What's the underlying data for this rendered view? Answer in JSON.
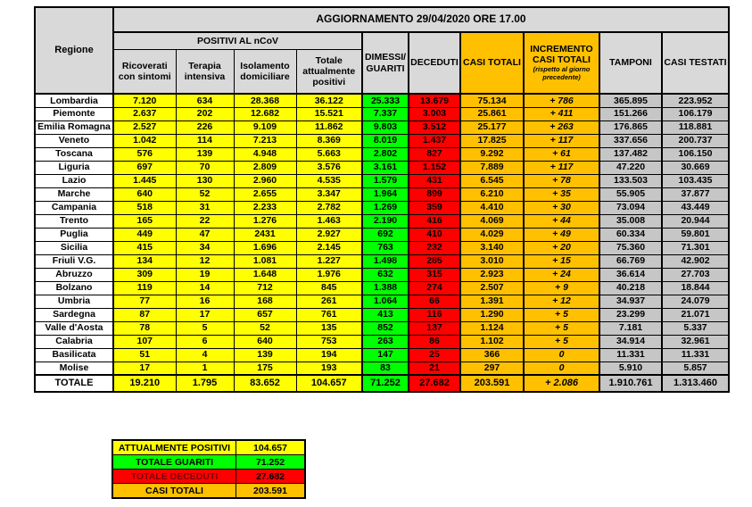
{
  "table": {
    "title": "AGGIORNAMENTO 29/04/2020 ORE 17.00",
    "region_header": "Regione",
    "group_header": "POSITIVI AL nCoV",
    "sub_headers": [
      "Ricoverati con sintomi",
      "Terapia intensiva",
      "Isolamento domiciliare",
      "Totale attualmente positivi"
    ],
    "col_headers": [
      "DIMESSI/ GUARITI",
      "DECEDUTI",
      "CASI TOTALI",
      "INCREMENTO CASI TOTALI",
      "TAMPONI",
      "CASI TESTATI"
    ],
    "increment_note": "(rispetto al giorno precedente)",
    "rows": [
      {
        "region": "Lombardia",
        "cells": [
          "7.120",
          "634",
          "28.368",
          "36.122",
          "25.333",
          "13.679",
          "75.134",
          "+ 786",
          "365.895",
          "223.952"
        ]
      },
      {
        "region": "Piemonte",
        "cells": [
          "2.637",
          "202",
          "12.682",
          "15.521",
          "7.337",
          "3.003",
          "25.861",
          "+ 411",
          "151.266",
          "106.179"
        ]
      },
      {
        "region": "Emilia Romagna",
        "cells": [
          "2.527",
          "226",
          "9.109",
          "11.862",
          "9.803",
          "3.512",
          "25.177",
          "+ 263",
          "176.865",
          "118.881"
        ]
      },
      {
        "region": "Veneto",
        "cells": [
          "1.042",
          "114",
          "7.213",
          "8.369",
          "8.019",
          "1.437",
          "17.825",
          "+ 117",
          "337.656",
          "200.737"
        ]
      },
      {
        "region": "Toscana",
        "cells": [
          "576",
          "139",
          "4.948",
          "5.663",
          "2.802",
          "827",
          "9.292",
          "+ 61",
          "137.482",
          "106.150"
        ]
      },
      {
        "region": "Liguria",
        "cells": [
          "697",
          "70",
          "2.809",
          "3.576",
          "3.161",
          "1.152",
          "7.889",
          "+ 117",
          "47.220",
          "30.669"
        ]
      },
      {
        "region": "Lazio",
        "cells": [
          "1.445",
          "130",
          "2.960",
          "4.535",
          "1.579",
          "431",
          "6.545",
          "+ 78",
          "133.503",
          "103.435"
        ]
      },
      {
        "region": "Marche",
        "cells": [
          "640",
          "52",
          "2.655",
          "3.347",
          "1.964",
          "899",
          "6.210",
          "+ 35",
          "55.905",
          "37.877"
        ]
      },
      {
        "region": "Campania",
        "cells": [
          "518",
          "31",
          "2.233",
          "2.782",
          "1.269",
          "359",
          "4.410",
          "+ 30",
          "73.094",
          "43.449"
        ]
      },
      {
        "region": "Trento",
        "cells": [
          "165",
          "22",
          "1.276",
          "1.463",
          "2.190",
          "416",
          "4.069",
          "+ 44",
          "35.008",
          "20.944"
        ]
      },
      {
        "region": "Puglia",
        "cells": [
          "449",
          "47",
          "2431",
          "2.927",
          "692",
          "410",
          "4.029",
          "+ 49",
          "60.334",
          "59.801"
        ]
      },
      {
        "region": "Sicilia",
        "cells": [
          "415",
          "34",
          "1.696",
          "2.145",
          "763",
          "232",
          "3.140",
          "+ 20",
          "75.360",
          "71.301"
        ]
      },
      {
        "region": "Friuli V.G.",
        "cells": [
          "134",
          "12",
          "1.081",
          "1.227",
          "1.498",
          "285",
          "3.010",
          "+ 15",
          "66.769",
          "42.902"
        ]
      },
      {
        "region": "Abruzzo",
        "cells": [
          "309",
          "19",
          "1.648",
          "1.976",
          "632",
          "315",
          "2.923",
          "+ 24",
          "36.614",
          "27.703"
        ]
      },
      {
        "region": "Bolzano",
        "cells": [
          "119",
          "14",
          "712",
          "845",
          "1.388",
          "274",
          "2.507",
          "+ 9",
          "40.218",
          "18.844"
        ]
      },
      {
        "region": "Umbria",
        "cells": [
          "77",
          "16",
          "168",
          "261",
          "1.064",
          "66",
          "1.391",
          "+ 12",
          "34.937",
          "24.079"
        ]
      },
      {
        "region": "Sardegna",
        "cells": [
          "87",
          "17",
          "657",
          "761",
          "413",
          "116",
          "1.290",
          "+ 5",
          "23.299",
          "21.071"
        ]
      },
      {
        "region": "Valle d'Aosta",
        "cells": [
          "78",
          "5",
          "52",
          "135",
          "852",
          "137",
          "1.124",
          "+ 5",
          "7.181",
          "5.337"
        ]
      },
      {
        "region": "Calabria",
        "cells": [
          "107",
          "6",
          "640",
          "753",
          "263",
          "86",
          "1.102",
          "+ 5",
          "34.914",
          "32.961"
        ]
      },
      {
        "region": "Basilicata",
        "cells": [
          "51",
          "4",
          "139",
          "194",
          "147",
          "25",
          "366",
          "0",
          "11.331",
          "11.331"
        ]
      },
      {
        "region": "Molise",
        "cells": [
          "17",
          "1",
          "175",
          "193",
          "83",
          "21",
          "297",
          "0",
          "5.910",
          "5.857"
        ]
      }
    ],
    "total_row": {
      "region": "TOTALE",
      "cells": [
        "19.210",
        "1.795",
        "83.652",
        "104.657",
        "71.252",
        "27.682",
        "203.591",
        "+ 2.086",
        "1.910.761",
        "1.313.460"
      ]
    }
  },
  "summary": {
    "rows": [
      {
        "label": "ATTUALMENTE POSITIVI",
        "value": "104.657",
        "tone": "yellow"
      },
      {
        "label": "TOTALE GUARITI",
        "value": "71.252",
        "tone": "green"
      },
      {
        "label": "TOTALE DECEDUTI",
        "value": "27.682",
        "tone": "red"
      },
      {
        "label": "CASI TOTALI",
        "value": "203.591",
        "tone": "orange"
      }
    ]
  },
  "colors": {
    "positivi_yellow": "#FFFF00",
    "guariti_green": "#00FF00",
    "deceduti_red": "#FF0000",
    "casi_totali_orange": "#FFC000",
    "header_grey": "#D9D9D9",
    "tamponi_grey": "#C6C6C6",
    "deceduti_label_text": "#7F0000",
    "border_black": "#000000"
  }
}
